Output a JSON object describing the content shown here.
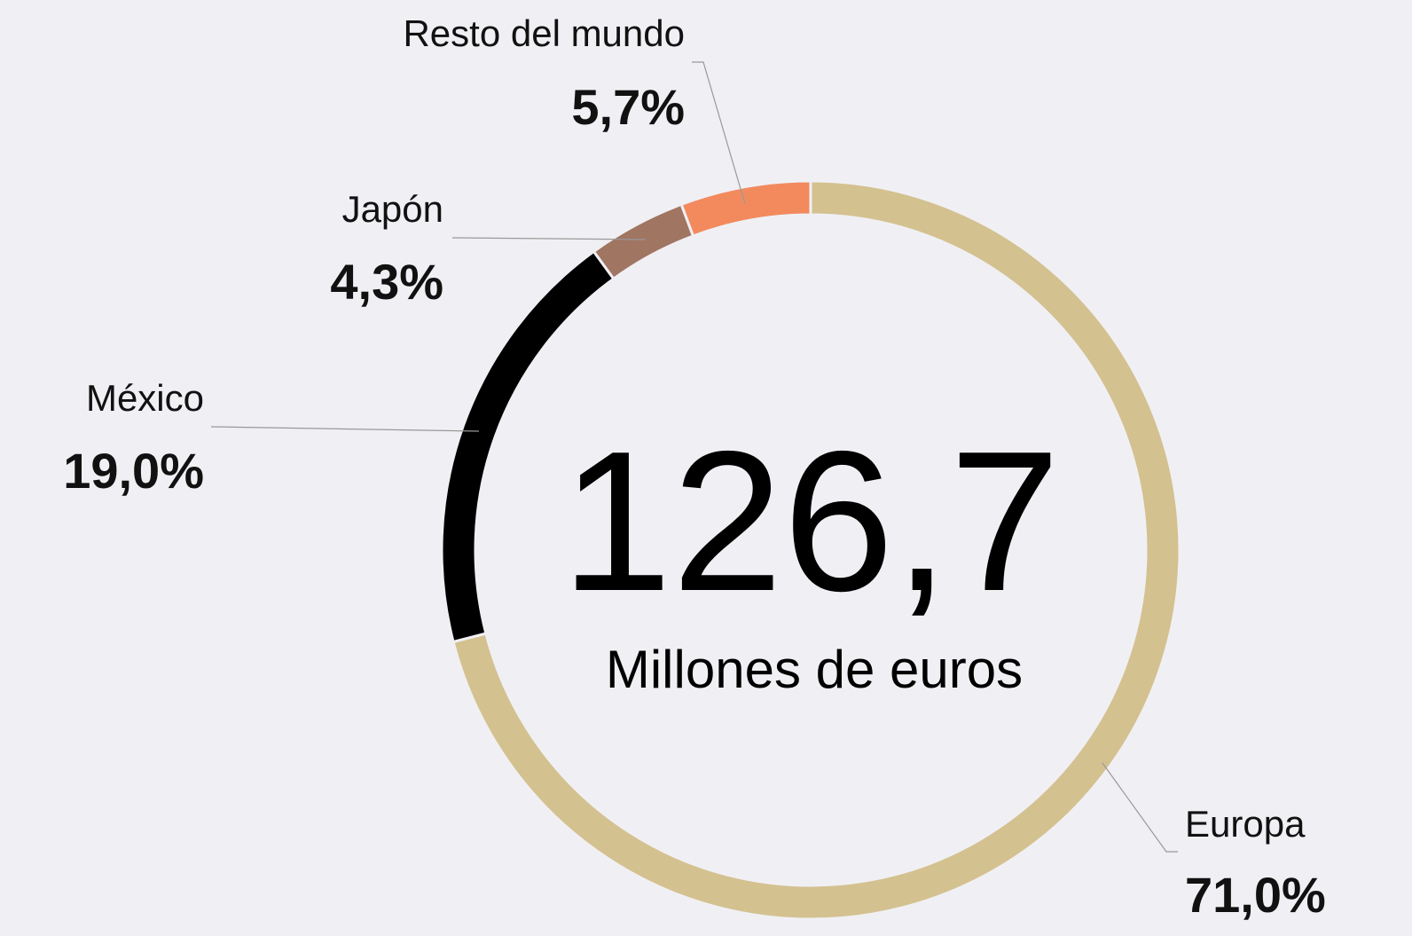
{
  "chart_data": {
    "type": "donut",
    "categories": [
      "Europa",
      "México",
      "Japón",
      "Resto del mundo"
    ],
    "values": [
      71.0,
      19.0,
      4.3,
      5.7
    ],
    "value_labels": [
      "71,0%",
      "19,0%",
      "4,3%",
      "5,7%"
    ],
    "colors": [
      "#d4c190",
      "#000000",
      "#a07562",
      "#f28a5e"
    ],
    "center_value": "126,7",
    "center_label": "Millones de euros"
  }
}
